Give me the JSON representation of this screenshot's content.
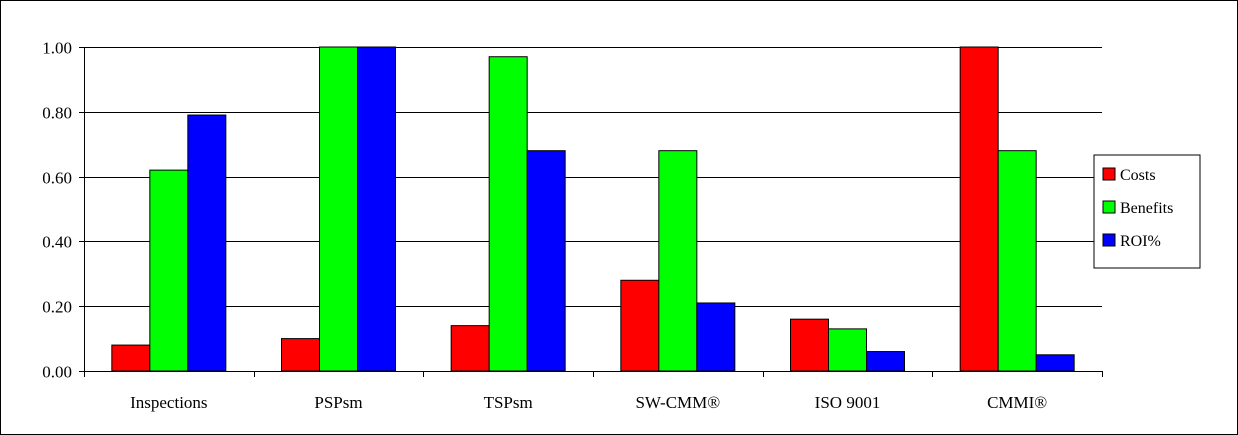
{
  "chart_data": {
    "type": "bar",
    "categories": [
      "Inspections",
      "PSPsm",
      "TSPsm",
      "SW-CMM®",
      "ISO 9001",
      "CMMI®"
    ],
    "series": [
      {
        "name": "Costs",
        "color": "#ff0000",
        "values": [
          0.08,
          0.1,
          0.14,
          0.28,
          0.16,
          1.0
        ]
      },
      {
        "name": "Benefits",
        "color": "#00ff00",
        "values": [
          0.62,
          1.0,
          0.97,
          0.68,
          0.13,
          0.68
        ]
      },
      {
        "name": "ROI%",
        "color": "#0000ff",
        "values": [
          0.79,
          1.0,
          0.68,
          0.21,
          0.06,
          0.05
        ]
      }
    ],
    "title": "",
    "xlabel": "",
    "ylabel": "",
    "ylim": [
      0,
      1
    ],
    "yticks": [
      "0.00",
      "0.20",
      "0.40",
      "0.60",
      "0.80",
      "1.00"
    ],
    "grid": true,
    "legend_position": "right"
  }
}
